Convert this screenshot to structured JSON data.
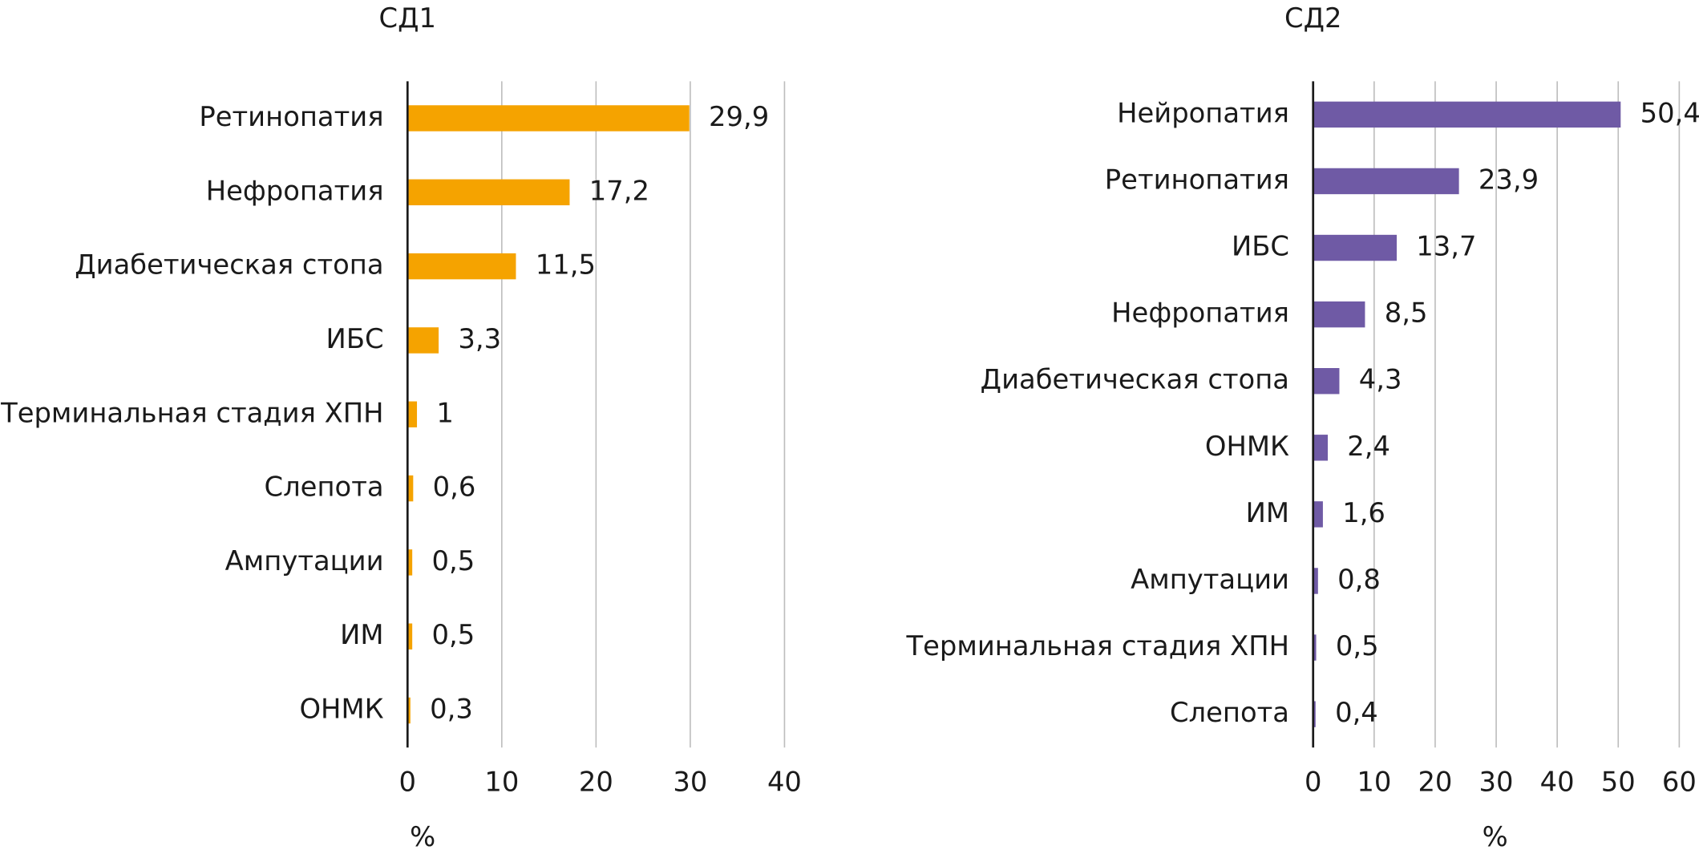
{
  "chart_data": [
    {
      "type": "bar",
      "orientation": "horizontal",
      "title": "СД1",
      "x_label": "%",
      "categories": [
        "Ретинопатия",
        "Нефропатия",
        "Диабетическая стопа",
        "ИБС",
        "Терминальная стадия ХПН",
        "Слепота",
        "Ампутации",
        "ИМ",
        "ОНМК"
      ],
      "values": [
        29.9,
        17.2,
        11.5,
        3.3,
        1,
        0.6,
        0.5,
        0.5,
        0.3
      ],
      "value_labels": [
        "29,9",
        "17,2",
        "11,5",
        "3,3",
        "1",
        "0,6",
        "0,5",
        "0,5",
        "0,3"
      ],
      "color": "#f5a300",
      "xlim": [
        0,
        40
      ],
      "xticks": [
        0,
        10,
        20,
        30,
        40
      ],
      "grid": true
    },
    {
      "type": "bar",
      "orientation": "horizontal",
      "title": "СД2",
      "x_label": "%",
      "categories": [
        "Нейропатия",
        "Ретинопатия",
        "ИБС",
        "Нефропатия",
        "Диабетическая стопа",
        "ОНМК",
        "ИМ",
        "Ампутации",
        "Терминальная стадия ХПН",
        "Слепота"
      ],
      "values": [
        50.4,
        23.9,
        13.7,
        8.5,
        4.3,
        2.4,
        1.6,
        0.8,
        0.5,
        0.4
      ],
      "value_labels": [
        "50,4",
        "23,9",
        "13,7",
        "8,5",
        "4,3",
        "2,4",
        "1,6",
        "0,8",
        "0,5",
        "0,4"
      ],
      "color": "#6f5aa5",
      "xlim": [
        0,
        60
      ],
      "xticks": [
        0,
        10,
        20,
        30,
        40,
        50,
        60
      ],
      "grid": true
    }
  ]
}
